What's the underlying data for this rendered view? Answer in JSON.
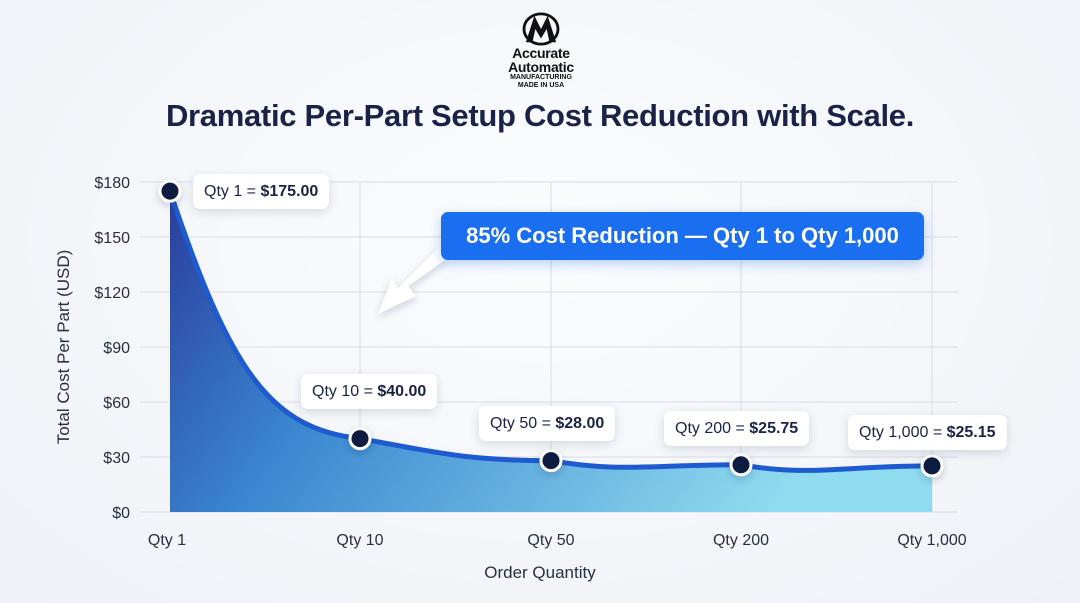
{
  "logo": {
    "line1": "Accurate",
    "line2": "Automatic",
    "line3": "MANUFACTURING",
    "line4": "MADE IN USA"
  },
  "title": "Dramatic Per-Part Setup Cost Reduction with Scale.",
  "banner": "85% Cost Reduction — Qty 1 to Qty 1,000",
  "colors": {
    "fill_dark": "#2a3d9c",
    "fill_light": "#8fdcef",
    "line": "#1e5bd0",
    "point": "#0f1a40",
    "banner": "#1a6ff0",
    "title": "#1a2347"
  },
  "chart_data": {
    "type": "area",
    "title": "Dramatic Per-Part Setup Cost Reduction with Scale.",
    "xlabel": "Order Quantity",
    "ylabel": "Total Cost Per Part (USD)",
    "categories": [
      "Qty 1",
      "Qty 10",
      "Qty 50",
      "Qty 200",
      "Qty 1,000"
    ],
    "values": [
      175.0,
      40.0,
      28.0,
      25.75,
      25.15
    ],
    "ylim": [
      0,
      180
    ],
    "yticks": [
      "$0",
      "$30",
      "$60",
      "$90",
      "$120",
      "$150",
      "$180"
    ],
    "ytick_values": [
      0,
      30,
      60,
      90,
      120,
      150,
      180
    ],
    "grid": true,
    "labels": [
      {
        "prefix": "Qty 1 = ",
        "value": "$175.00"
      },
      {
        "prefix": "Qty 10 = ",
        "value": "$40.00"
      },
      {
        "prefix": "Qty 50 = ",
        "value": "$28.00"
      },
      {
        "prefix": "Qty 200 = ",
        "value": "$25.75"
      },
      {
        "prefix": "Qty 1,000 = ",
        "value": "$25.15"
      }
    ]
  }
}
